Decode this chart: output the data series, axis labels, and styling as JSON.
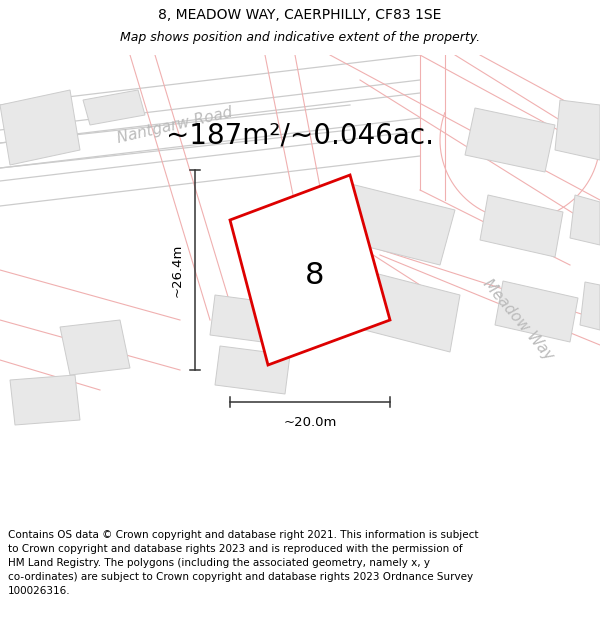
{
  "title_line1": "8, MEADOW WAY, CAERPHILLY, CF83 1SE",
  "title_line2": "Map shows position and indicative extent of the property.",
  "area_text": "~187m²/~0.046ac.",
  "label_number": "8",
  "dim_width": "~20.0m",
  "dim_height": "~26.4m",
  "road_label1": "Nantgarw Road",
  "road_label2": "Meadow Way",
  "footer_lines": [
    "Contains OS data © Crown copyright and database right 2021. This information is subject",
    "to Crown copyright and database rights 2023 and is reproduced with the permission of",
    "HM Land Registry. The polygons (including the associated geometry, namely x, y",
    "co-ordinates) are subject to Crown copyright and database rights 2023 Ordnance Survey",
    "100026316."
  ],
  "bg_color": "#ffffff",
  "map_bg": "#ffffff",
  "building_fill": "#e8e8e8",
  "building_edge": "#cccccc",
  "plot_boundary_color": "#f0b0b0",
  "highlight_fill": "#ffffff",
  "highlight_edge": "#dd0000",
  "road_line_color": "#f0b0b0",
  "dim_line_color": "#333333",
  "text_color": "#000000",
  "road_text_color": "#bbbbbb",
  "nantgarw_color": "#cccccc",
  "title_fontsize": 10,
  "subtitle_fontsize": 9,
  "area_fontsize": 20,
  "label_fontsize": 22,
  "dim_fontsize": 9.5,
  "road_fontsize": 11,
  "footer_fontsize": 7.5
}
